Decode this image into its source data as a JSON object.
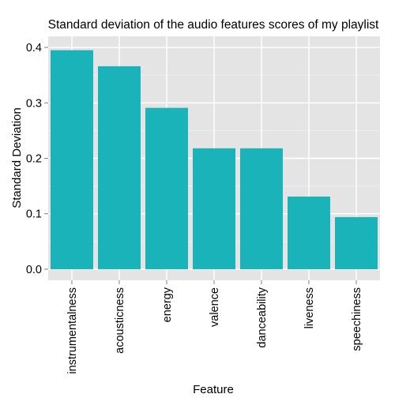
{
  "chart_data": {
    "type": "bar",
    "title": "Standard deviation of the audio features scores of my playlist",
    "xlabel": "Feature",
    "ylabel": "Standard Deviation",
    "categories": [
      "instrumentalness",
      "acousticness",
      "energy",
      "valence",
      "danceability",
      "liveness",
      "speechiness"
    ],
    "values": [
      0.395,
      0.366,
      0.291,
      0.218,
      0.218,
      0.131,
      0.094
    ],
    "ylim": [
      -0.02,
      0.42
    ],
    "yticks": [
      "0.0",
      "0.1",
      "0.2",
      "0.3",
      "0.4"
    ],
    "grid": true,
    "legend": "none",
    "colors": {
      "bar": "#1ab3b9",
      "panel": "#e4e4e4",
      "grid_major": "#ffffff",
      "grid_minor": "#efefef",
      "text": "#000000",
      "tick_text": "#000000"
    }
  }
}
